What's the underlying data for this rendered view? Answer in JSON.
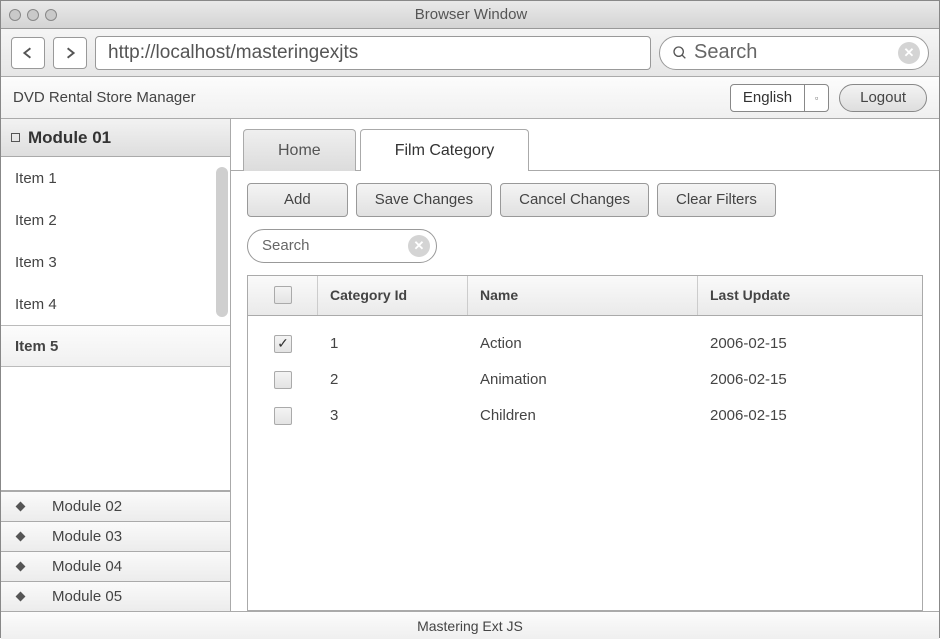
{
  "window": {
    "title": "Browser Window"
  },
  "nav": {
    "url": "http://localhost/masteringexjts",
    "search_placeholder": "Search"
  },
  "app": {
    "title": "DVD Rental Store Manager",
    "language": "English",
    "logout": "Logout"
  },
  "sidebar": {
    "active_module": "Module 01",
    "items": [
      "Item 1",
      "Item 2",
      "Item 3",
      "Item 4",
      "Item 5"
    ],
    "selected_index": 4,
    "modules": [
      "Module 02",
      "Module 03",
      "Module 04",
      "Module 05"
    ]
  },
  "tabs": [
    {
      "label": "Home",
      "active": false
    },
    {
      "label": "Film Category",
      "active": true
    }
  ],
  "toolbar": {
    "add": "Add",
    "save": "Save Changes",
    "cancel": "Cancel Changes",
    "clear": "Clear Filters"
  },
  "grid": {
    "search_placeholder": "Search",
    "columns": [
      "Category Id",
      "Name",
      "Last Update"
    ],
    "rows": [
      {
        "checked": true,
        "id": "1",
        "name": "Action",
        "updated": "2006-02-15"
      },
      {
        "checked": false,
        "id": "2",
        "name": "Animation",
        "updated": "2006-02-15"
      },
      {
        "checked": false,
        "id": "3",
        "name": "Children",
        "updated": "2006-02-15"
      }
    ]
  },
  "footer": "Mastering Ext JS",
  "colors": {
    "border": "#999999",
    "grad_top": "#f5f5f5",
    "grad_bot": "#dedede",
    "text": "#444444"
  }
}
